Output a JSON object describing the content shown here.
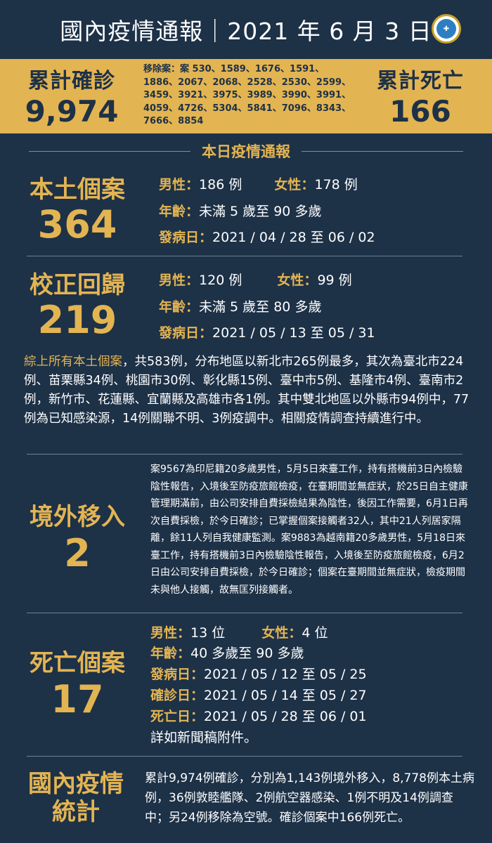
{
  "header": {
    "title": "國內疫情通報｜2021 年 6 月 3 日",
    "logo_icon": "cdc-logo"
  },
  "totals": {
    "confirmed_label": "累計確診",
    "confirmed_value": "9,974",
    "removed_text": "移除案：案 530、1589、1676、1591、1886、2067、2068、2528、2530、2599、3459、3921、3975、3989、3990、3991、4059、4726、5304、5841、7096、8343、7666、8854",
    "deaths_label": "累計死亡",
    "deaths_value": "166"
  },
  "section_title": "本日疫情通報",
  "local": {
    "label": "本土個案",
    "value": "364",
    "male_k": "男性：",
    "male_v": "186 例",
    "female_k": "女性：",
    "female_v": "178 例",
    "age_k": "年齡：",
    "age_v": "未滿 5 歲至 90 多歲",
    "onset_k": "發病日：",
    "onset_v": "2021 / 04 / 28 至 06 / 02"
  },
  "backlog": {
    "label": "校正回歸",
    "value": "219",
    "male_k": "男性：",
    "male_v": "120 例",
    "female_k": "女性：",
    "female_v": "99 例",
    "age_k": "年齡：",
    "age_v": "未滿 5 歲至 80 多歲",
    "onset_k": "發病日：",
    "onset_v": "2021 / 05 / 13 至 05 / 31"
  },
  "summary": {
    "lead": "綜上所有本土個案",
    "text": "，共583例，分布地區以新北市265例最多，其次為臺北市224例、苗栗縣34例、桃園市30例、彰化縣15例、臺中市5例、基隆市4例、臺南市2例，新竹市、花蓮縣、宜蘭縣及高雄市各1例。其中雙北地區以外縣市94例中，77例為已知感染源，14例關聯不明、3例疫調中。相關疫情調查持續進行中。"
  },
  "imported": {
    "label": "境外移入",
    "value": "2",
    "text": "案9567為印尼籍20多歲男性，5月5日來臺工作，持有搭機前3日內檢驗陰性報告，入境後至防疫旅館檢疫，在臺期間並無症狀，於25日自主健康管理期滿前，由公司安排自費採檢結果為陰性，後因工作需要，6月1日再次自費採檢，於今日確診；已掌握個案接觸者32人，其中21人列居家隔離，餘11人列自我健康監測。案9883為越南籍20多歲男性，5月18日來臺工作，持有搭機前3日內檢驗陰性報告，入境後至防疫旅館檢疫，6月2日由公司安排自費採檢，於今日確診；個案在臺期間並無症狀，檢疫期間未與他人接觸，故無匡列接觸者。"
  },
  "deaths": {
    "label": "死亡個案",
    "value": "17",
    "male_k": "男性：",
    "male_v": "13 位",
    "female_k": "女性：",
    "female_v": "4 位",
    "age_k": "年齡：",
    "age_v": "40 多歲至 90 多歲",
    "onset_k": "發病日：",
    "onset_v": "2021 / 05 / 12 至 05 / 25",
    "confirm_k": "確診日：",
    "confirm_v": "2021 / 05 / 14 至 05 / 27",
    "death_k": "死亡日：",
    "death_v": "2021 / 05 / 28 至 06 / 01",
    "note": "詳如新聞稿附件。"
  },
  "stats": {
    "label_line1": "國內疫情",
    "label_line2": "統計",
    "text": "累計9,974例確診，分別為1,143例境外移入，8,778例本土病例，36例敦睦艦隊、2例航空器感染、1例不明及14例調查中；另24例移除為空號。確診個案中166例死亡。"
  },
  "colors": {
    "background": "#1d3147",
    "accent_gold": "#e3b452",
    "text": "#ffffff"
  }
}
